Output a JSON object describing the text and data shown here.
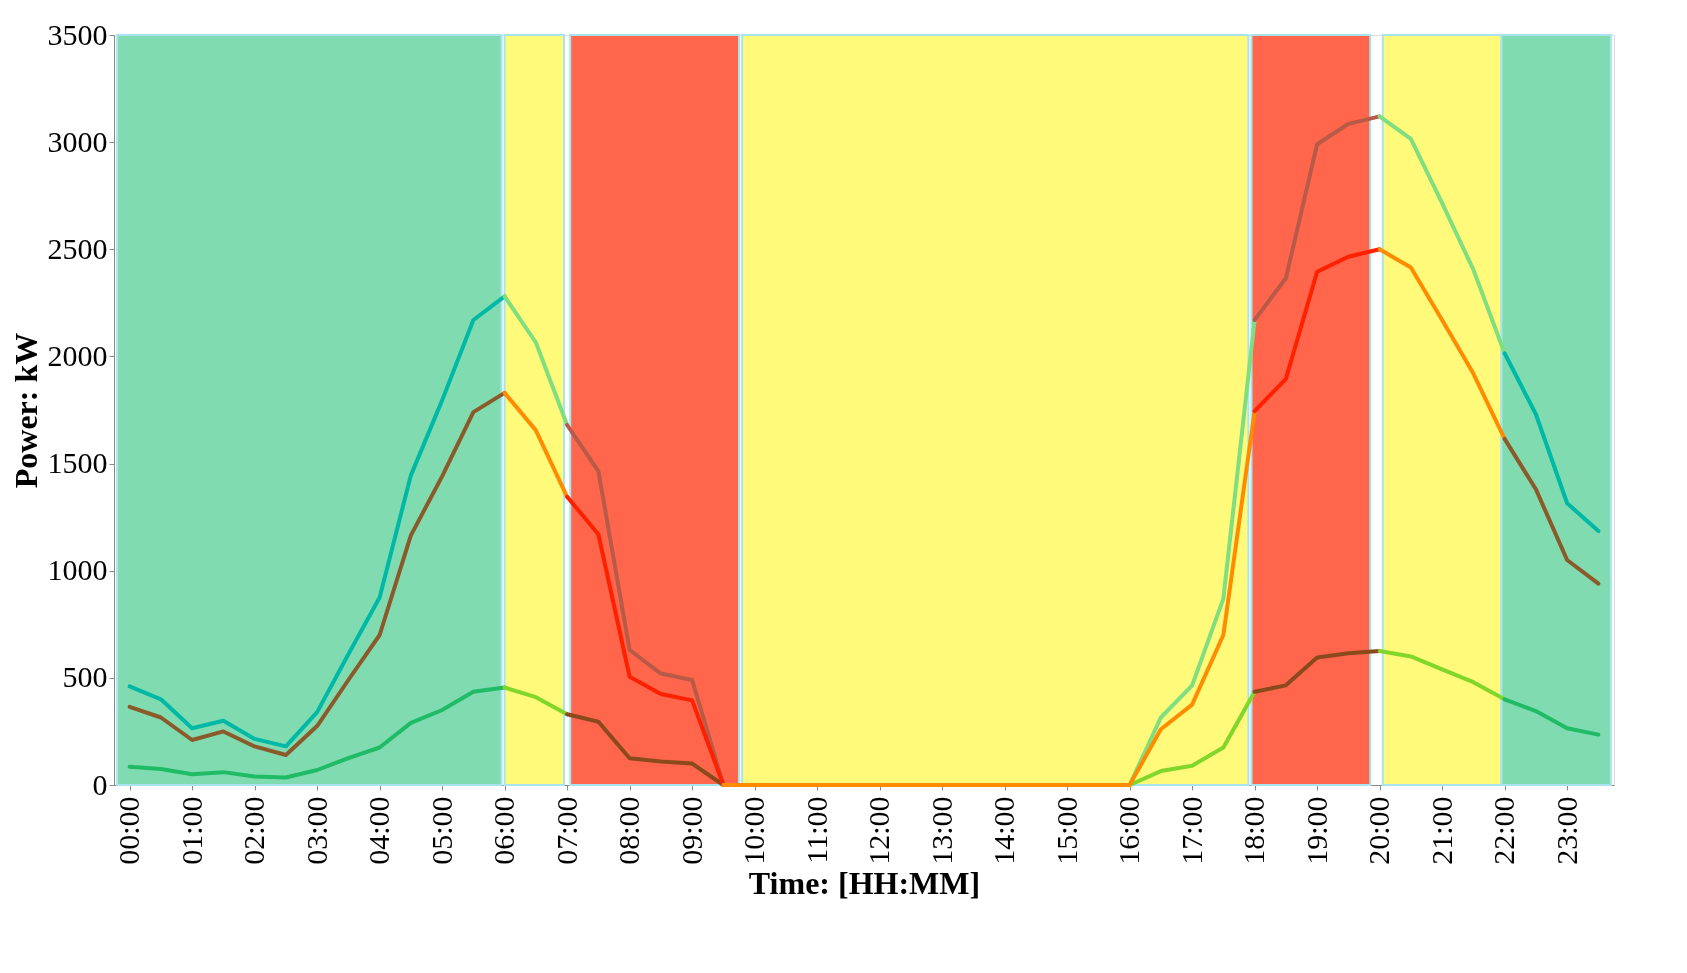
{
  "chart_data": {
    "type": "line",
    "xlabel": "Time: [HH:MM]",
    "ylabel": "Power: kW",
    "xlim": [
      -0.25,
      23.75
    ],
    "ylim": [
      0,
      3500
    ],
    "yticks": [
      0,
      500,
      1000,
      1500,
      2000,
      2500,
      3000,
      3500
    ],
    "xticks": [
      {
        "value": 0,
        "label": "00:00"
      },
      {
        "value": 1,
        "label": "01:00"
      },
      {
        "value": 2,
        "label": "02:00"
      },
      {
        "value": 3,
        "label": "03:00"
      },
      {
        "value": 4,
        "label": "04:00"
      },
      {
        "value": 5,
        "label": "05:00"
      },
      {
        "value": 6,
        "label": "06:00"
      },
      {
        "value": 7,
        "label": "07:00"
      },
      {
        "value": 8,
        "label": "08:00"
      },
      {
        "value": 9,
        "label": "09:00"
      },
      {
        "value": 10,
        "label": "10:00"
      },
      {
        "value": 11,
        "label": "11:00"
      },
      {
        "value": 12,
        "label": "12:00"
      },
      {
        "value": 13,
        "label": "13:00"
      },
      {
        "value": 14,
        "label": "14:00"
      },
      {
        "value": 15,
        "label": "15:00"
      },
      {
        "value": 16,
        "label": "16:00"
      },
      {
        "value": 17,
        "label": "17:00"
      },
      {
        "value": 18,
        "label": "18:00"
      },
      {
        "value": 19,
        "label": "19:00"
      },
      {
        "value": 20,
        "label": "20:00"
      },
      {
        "value": 21,
        "label": "21:00"
      },
      {
        "value": 22,
        "label": "22:00"
      },
      {
        "value": 23,
        "label": "23:00"
      }
    ],
    "grid": false,
    "marker": "none",
    "line_style": "solid",
    "bands": [
      {
        "axis": "x",
        "from": -0.2,
        "to": 5.95,
        "color": "#80dcb0"
      },
      {
        "axis": "x",
        "from": 6.0,
        "to": 6.95,
        "color": "#fffa7a"
      },
      {
        "axis": "x",
        "from": 7.05,
        "to": 9.75,
        "color": "#ff664b"
      },
      {
        "axis": "x",
        "from": 9.8,
        "to": 17.9,
        "color": "#fffa7a"
      },
      {
        "axis": "x",
        "from": 17.95,
        "to": 19.85,
        "color": "#ff664b"
      },
      {
        "axis": "x",
        "from": 20.05,
        "to": 21.95,
        "color": "#fffa7a"
      },
      {
        "axis": "x",
        "from": 21.95,
        "to": 23.7,
        "color": "#80dcb0"
      }
    ],
    "series": [
      {
        "color": "#00b8a6",
        "x": [
          0,
          0.5,
          1,
          1.5,
          2,
          2.5,
          3,
          3.5,
          4,
          4.5,
          5,
          5.5,
          6
        ],
        "values": [
          460,
          400,
          265,
          300,
          215,
          180,
          340,
          610,
          875,
          1445,
          1795,
          2170,
          2280
        ]
      },
      {
        "color": "#7ede80",
        "x": [
          6,
          6.5,
          7
        ],
        "values": [
          2280,
          2065,
          1680
        ]
      },
      {
        "color": "#b85a48",
        "x": [
          7,
          7.5,
          8,
          8.5,
          9,
          9.5
        ],
        "values": [
          1680,
          1465,
          630,
          520,
          490,
          0
        ]
      },
      {
        "color": "#7ede80",
        "x": [
          16,
          16.5,
          17,
          17.5,
          18
        ],
        "values": [
          0,
          315,
          465,
          870,
          2170
        ]
      },
      {
        "color": "#b85a48",
        "x": [
          18,
          18.5,
          19,
          19.5,
          20
        ],
        "values": [
          2170,
          2365,
          2990,
          3085,
          3120
        ]
      },
      {
        "color": "#7ede80",
        "x": [
          20,
          20.5,
          21,
          21.5,
          22
        ],
        "values": [
          3120,
          3015,
          2715,
          2405,
          2015
        ]
      },
      {
        "color": "#00b8a6",
        "x": [
          22,
          22.5,
          23,
          23.5
        ],
        "values": [
          2015,
          1730,
          1315,
          1185
        ]
      },
      {
        "color": "#1fbb66",
        "x": [
          0,
          0.5,
          1,
          1.5,
          2,
          2.5,
          3,
          3.5,
          4,
          4.5,
          5,
          5.5,
          6
        ],
        "values": [
          85,
          75,
          50,
          60,
          40,
          35,
          70,
          125,
          175,
          290,
          350,
          435,
          455
        ]
      },
      {
        "color": "#80d62a",
        "x": [
          6,
          6.5,
          7
        ],
        "values": [
          455,
          410,
          330
        ]
      },
      {
        "color": "#8b4a1c",
        "x": [
          7,
          7.5,
          8,
          8.5,
          9,
          9.5
        ],
        "values": [
          330,
          295,
          125,
          110,
          100,
          0
        ]
      },
      {
        "color": "#80d62a",
        "x": [
          16,
          16.5,
          17,
          17.5,
          18
        ],
        "values": [
          0,
          65,
          90,
          175,
          435
        ]
      },
      {
        "color": "#8b4a1c",
        "x": [
          18,
          18.5,
          19,
          19.5,
          20
        ],
        "values": [
          435,
          465,
          595,
          615,
          625
        ]
      },
      {
        "color": "#80d62a",
        "x": [
          20,
          20.5,
          21,
          21.5,
          22
        ],
        "values": [
          625,
          600,
          540,
          480,
          400
        ]
      },
      {
        "color": "#1fbb66",
        "x": [
          22,
          22.5,
          23,
          23.5
        ],
        "values": [
          400,
          345,
          265,
          235
        ]
      },
      {
        "color": "#8b5a2b",
        "x": [
          0,
          0.5,
          1,
          1.5,
          2,
          2.5,
          3,
          3.5,
          4,
          4.5,
          5,
          5.5,
          6
        ],
        "values": [
          365,
          315,
          210,
          250,
          180,
          140,
          275,
          490,
          700,
          1165,
          1440,
          1740,
          1830
        ]
      },
      {
        "color": "#ff8c00",
        "x": [
          6,
          6.5,
          7
        ],
        "values": [
          1830,
          1655,
          1345
        ]
      },
      {
        "color": "#ff2000",
        "x": [
          7,
          7.5,
          8,
          8.5,
          9,
          9.5
        ],
        "values": [
          1345,
          1170,
          505,
          425,
          395,
          0
        ]
      },
      {
        "color": "#ff8c00",
        "x": [
          9.5,
          10,
          10.5,
          11,
          11.5,
          12,
          12.5,
          13,
          13.5,
          14,
          14.5,
          15,
          15.5,
          16,
          16.5,
          17,
          17.5,
          18
        ],
        "values": [
          0,
          0,
          0,
          0,
          0,
          0,
          0,
          0,
          0,
          0,
          0,
          0,
          0,
          0,
          260,
          375,
          700,
          1745
        ]
      },
      {
        "color": "#ff2000",
        "x": [
          18,
          18.5,
          19,
          19.5,
          20
        ],
        "values": [
          1745,
          1895,
          2395,
          2465,
          2500
        ]
      },
      {
        "color": "#ff8c00",
        "x": [
          20,
          20.5,
          21,
          21.5,
          22
        ],
        "values": [
          2500,
          2415,
          2170,
          1920,
          1615
        ]
      },
      {
        "color": "#8b5a2b",
        "x": [
          22,
          22.5,
          23,
          23.5
        ],
        "values": [
          1615,
          1380,
          1050,
          940
        ]
      }
    ]
  }
}
